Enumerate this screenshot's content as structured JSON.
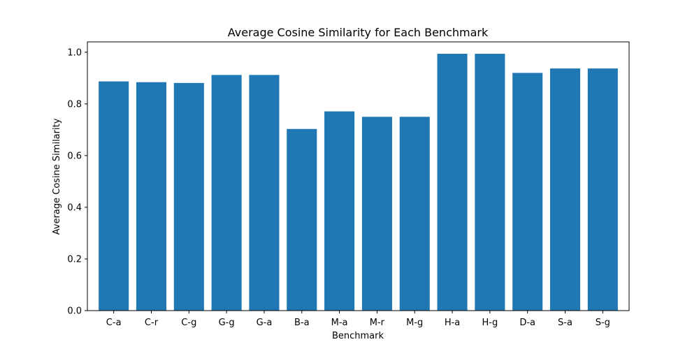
{
  "chart_data": {
    "type": "bar",
    "title": "Average Cosine Similarity for Each Benchmark",
    "xlabel": "Benchmark",
    "ylabel": "Average Cosine Similarity",
    "categories": [
      "C-a",
      "C-r",
      "C-g",
      "G-g",
      "G-a",
      "B-a",
      "M-a",
      "M-r",
      "M-g",
      "H-a",
      "H-g",
      "D-a",
      "S-a",
      "S-g"
    ],
    "values": [
      0.887,
      0.884,
      0.881,
      0.912,
      0.912,
      0.703,
      0.771,
      0.75,
      0.75,
      0.994,
      0.994,
      0.92,
      0.937,
      0.937
    ],
    "ylim": [
      0,
      1.04
    ],
    "yticks": [
      "0.0",
      "0.2",
      "0.4",
      "0.6",
      "0.8",
      "1.0"
    ],
    "bar_color": "#1f77b4",
    "grid": false,
    "legend": false
  }
}
